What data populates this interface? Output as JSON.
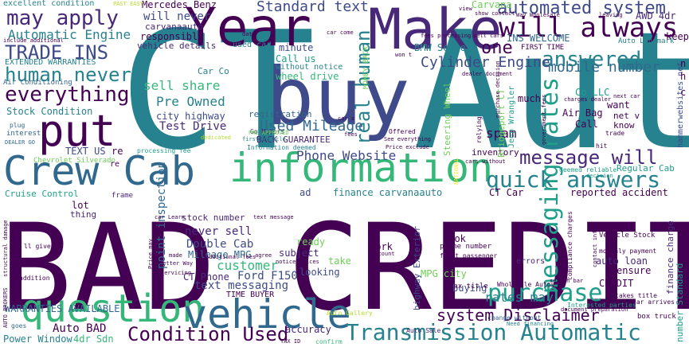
{
  "colors": {
    "background": "#ffffff",
    "palette": [
      "#440154",
      "#482878",
      "#3e4a89",
      "#31688e",
      "#26828e",
      "#1f9e89",
      "#35b779",
      "#6ece58",
      "#b5de2b",
      "#fde725"
    ]
  },
  "words": {
    "bad_credit": "BAD CREDIT",
    "ct_auto": "CT Auto",
    "buy": "buy",
    "year": "Year",
    "make": "Make",
    "put": "put",
    "crew_cab": "Crew Cab",
    "information": "information",
    "question": "question",
    "vehicle": "vehicle",
    "transmission_automatic": "Transmission Automatic",
    "condition_used": "Condition Used",
    "purchase": "purchase",
    "messaging_rates": "messaging rates",
    "will_always": "will always",
    "quick_answers": "quick answers",
    "message_will": "message will",
    "automated_system": "automated system",
    "standard_text": "Standard text",
    "may_apply": "may apply",
    "trade_ins": "TRADE INS",
    "human_never": "human never",
    "everything": "everything",
    "automatic_engine": "Automatic Engine",
    "answered": "answered",
    "cylinder_engine": "Cylinder Engine",
    "mobile_number": "mobile number",
    "real_human": "real human",
    "one": "one",
    "used_mileage": "Used Mileage",
    "phone_website": "Phone Website",
    "pre_owned": "Pre Owned",
    "test_drive": "Test Drive",
    "sell_share": "sell share",
    "customer": "customer",
    "text_messaging": "text messaging",
    "system_disclaimer": "system Disclaimer",
    "rates_may": "rates may",
    "point_inspection": "point inspection",
    "never_sell": "never sell",
    "double_cab": "Double Cab",
    "mileage_mpg": "Mileage MPG",
    "ct_phone": "CT Phone",
    "ford_f150": "Ford F150",
    "warranties_available": "WARRANTIES AVAILABLE",
    "auto_bad": "Auto BAD",
    "power_window": "Power Window",
    "sdn_4dr": "4dr Sdn",
    "excellent_condition": "excellent condition",
    "mercedes_benz": "Mercedes Benz",
    "will_never": "will never",
    "carvanaauto": "carvanaauto",
    "responsible": "responsible",
    "vehicle_details": "vehicle details",
    "used_car": "used car",
    "minute": "minute",
    "call_us": "Call us",
    "without_notice": "without notice",
    "wheel_drive": "wheel drive",
    "car_co": "Car Co",
    "city_highway": "city highway",
    "registration": "registration",
    "back_guarantee": "BACK GUARANTEE",
    "stock_condition": "Stock Condition",
    "extended_warranties": "EXTENDED WARRANTIES",
    "air_conditioning": "Air Conditioning",
    "text_us": "TEXT US",
    "re": "re",
    "chevrolet_silverado": "Chevrolet Silverado",
    "cruise_control": "Cruise Control",
    "lot": "lot",
    "thing": "thing",
    "finance_carvanaauto": "finance carvanaauto",
    "ct_car": "CT Car",
    "reported_accident": "reported accident",
    "regular_cab": "Regular Cab",
    "spam": "spam",
    "inventory": "inventory",
    "bridgeport_ct": "Bridgeport CT",
    "steering_wheel": "Steering Wheel",
    "jeep_wrangler": "Jeep Wrangler",
    "ins_welcome": "INS WELCOME",
    "first_time": "FIRST TIME",
    "bmw_series": "BMW Series",
    "carvana": "Carvana",
    "awd_4dr": "AWD 4dr",
    "keep": "keep",
    "co_llc": "Co LLC",
    "much": "much",
    "want": "want",
    "air_bag": "Air Bag",
    "call": "Call",
    "net_v": "net v",
    "know": "know",
    "ready": "ready",
    "subject": "subject",
    "looking": "looking",
    "take": "take",
    "work": "work",
    "look": "look",
    "mpg_city": "MPG city",
    "buying": "buying",
    "highway_exterior": "highway Exterior",
    "auto_loan": "auto loan",
    "ensure": "ensure",
    "credit": "CREDIT",
    "finance_charge": "finance charge",
    "number_standard": "number Standard",
    "time_buyer": "TIME BUYER",
    "accuracy": "accuracy",
    "stock_number": "stock number",
    "ad": "ad",
    "errors": "errors",
    "go_motors": "Go Motors",
    "money_back": "MONEY BACK",
    "hammerwebsites_net": "hammerwebsites net",
    "auto_landmark": "Auto Landmark",
    "pre_approved": "PRE APPROVED",
    "frame": "frame",
    "processing_fee": "processing fee",
    "information_deemed": "Information deemed",
    "vehicle_stock": "Vehicle Stock",
    "monthly_payment": "monthly payment",
    "dealer_go": "DEALER GO",
    "plug": "plug",
    "interest": "interest",
    "tax_title": "tax title",
    "wholesale_autos": "Wholesale Autos",
    "auto_sale": "Auto Sale",
    "box_truck": "box truck",
    "car_arrives": "car arrives",
    "takes_title": "takes title",
    "interested_parties": "Interested parties",
    "need_financing": "Need financing",
    "change_without": "change without",
    "tax_id": "TAX ID",
    "confirm": "confirm",
    "auto_brokers": "AUTO BROKERS",
    "goes": "goes",
    "structural_damage": "structural damage",
    "addition": "addition",
    "ll_give": "ll give",
    "better_way": "Better Way",
    "servicing": "servicing",
    "made": "made",
    "additional_fees": "additional fees",
    "price_may": "Price may",
    "notice_prices": "notice Prices",
    "agree": "agree",
    "auto_gallery": "Auto Gallery",
    "front_passenger": "front passenger",
    "phone_number": "phone number",
    "account": "account",
    "search_bar": "search bar",
    "compliance_charges": "compliance charges",
    "document_preparation": "document preparation",
    "deemed_reliable": "deemed reliable",
    "decision": "decision",
    "car_learn": "car Learn",
    "text_message": "text message",
    "offered": "Offered",
    "see_everything": "See everything",
    "price_exclude": "Price exclude",
    "cars_without": "cars without",
    "relying": "relying",
    "government_fees": "government fees",
    "hit": "hit",
    "trade": "trade",
    "next_car": "next car",
    "charges_dealer": "charges dealer",
    "dealer_document": "dealer document",
    "purchase_decision": "purchase decision",
    "include_additional": "include additional",
    "past_easy": "PAST EASY",
    "view": "view",
    "show_contact": "show contact",
    "way_wholesale": "Way Wholesale",
    "leaving": "leaving",
    "sell_cars": "sell cars",
    "data": "data",
    "car_come": "car come",
    "fees_processing": "fees processing",
    "won_t": "won t",
    "first_vehicle": "first Vehicle",
    "dedicated": "dedicated",
    "car_s": "car s",
    "fees": "fees",
    "national": "NATIONAL",
    "contact_info": "contact info",
    "n": "n",
    "h": "h",
    "c": "c",
    "re2": "re"
  }
}
